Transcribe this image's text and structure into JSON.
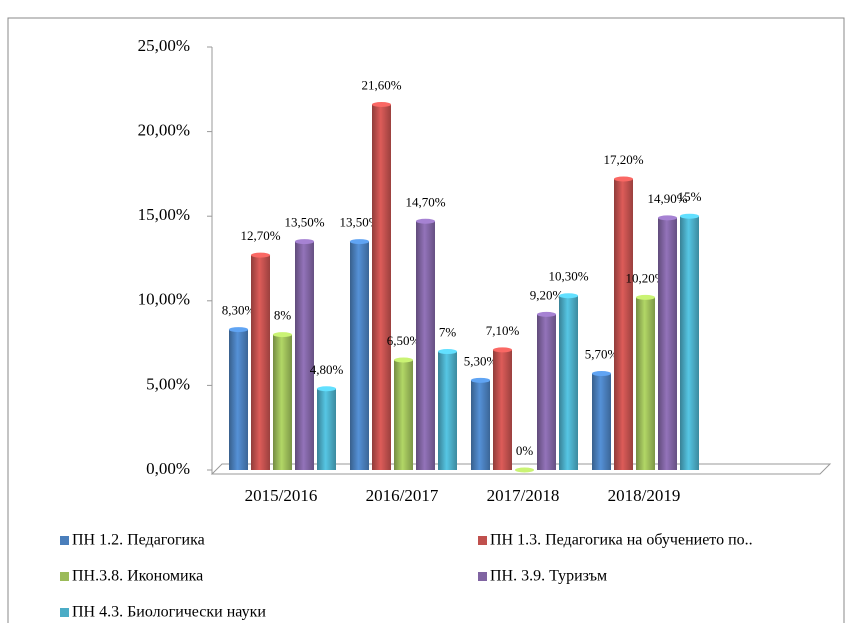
{
  "chart_data": {
    "type": "bar",
    "categories": [
      "2015/2016",
      "2016/2017",
      "2017/2018",
      "2018/2019"
    ],
    "series": [
      {
        "name": "ПН 1.2. Педагогика",
        "color": "#4a7ebb",
        "values": [
          8.3,
          13.5,
          5.3,
          5.7
        ],
        "value_labels": [
          "8,30%",
          "13,50%",
          "5,30%",
          "5,70%"
        ]
      },
      {
        "name": "ПН 1.3. Педагогика на обучението по..",
        "color": "#c0504d",
        "values": [
          12.7,
          21.6,
          7.1,
          17.2
        ],
        "value_labels": [
          "12,70%",
          "21,60%",
          "7,10%",
          "17,20%"
        ]
      },
      {
        "name": "ПН.3.8. Икономика",
        "color": "#9bbb59",
        "values": [
          8,
          6.5,
          0,
          10.2
        ],
        "value_labels": [
          "8%",
          "6,50%",
          "0%",
          "10,20%"
        ]
      },
      {
        "name": "ПН. 3.9. Туризъм",
        "color": "#8064a2",
        "values": [
          13.5,
          14.7,
          9.2,
          14.9
        ],
        "value_labels": [
          "13,50%",
          "14,70%",
          "9,20%",
          "14,90%"
        ]
      },
      {
        "name": "ПН 4.3. Биологически науки",
        "color": "#4bacc6",
        "values": [
          4.8,
          7,
          10.3,
          15
        ],
        "value_labels": [
          "4,80%",
          "7%",
          "10,30%",
          "15%"
        ]
      }
    ],
    "ylim": [
      0,
      25
    ],
    "yticks": [
      {
        "value": 0,
        "label": "0,00%"
      },
      {
        "value": 5,
        "label": "5,00%"
      },
      {
        "value": 10,
        "label": "10,00%"
      },
      {
        "value": 15,
        "label": "15,00%"
      },
      {
        "value": 20,
        "label": "20,00%"
      },
      {
        "value": 25,
        "label": "25,00%"
      }
    ],
    "legend": "bottom"
  }
}
